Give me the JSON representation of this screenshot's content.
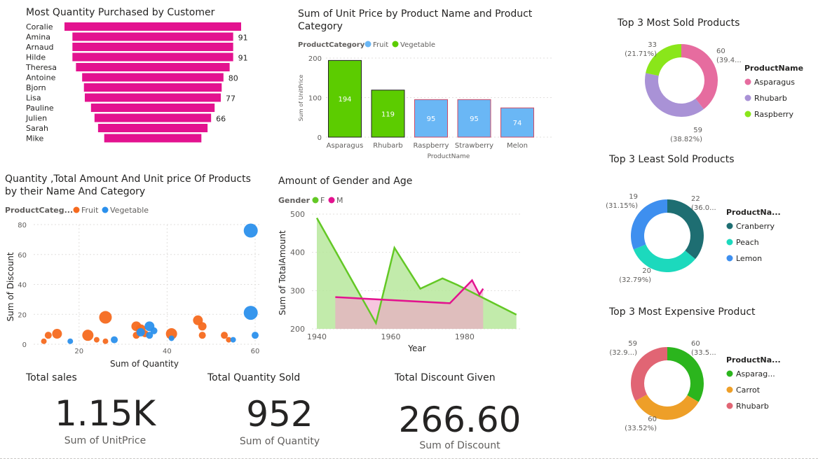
{
  "colors": {
    "pink": "#e3128f",
    "fruit": "#6ab7f5",
    "vegetable": "#5ccc00",
    "scatter_fruit": "#f56a1f",
    "scatter_veg": "#2b90ec",
    "gender_f": "#63c825",
    "gender_m": "#e3128f"
  },
  "charts": {
    "customers": {
      "title": "Most Quantity Purchased by Customer",
      "chart_data": {
        "type": "bar",
        "orientation": "funnel",
        "categories": [
          "Coralie",
          "Amina",
          "Arnaud",
          "Hilde",
          "Theresa",
          "Antoine",
          "Bjorn",
          "Lisa",
          "Pauline",
          "Julien",
          "Sarah",
          "Mike"
        ],
        "values": [
          100,
          91,
          91,
          91,
          87,
          80,
          78,
          77,
          70,
          66,
          62,
          55
        ],
        "labels": [
          "",
          "91",
          "",
          "91",
          "",
          "80",
          "",
          "77",
          "",
          "66",
          "",
          ""
        ]
      }
    },
    "unitprice": {
      "title": "Sum of Unit Price by Product Name and Product Category",
      "legend_title": "ProductCategory",
      "legend": [
        "Fruit",
        "Vegetable"
      ],
      "ylabel": "Sum of UnitPrice",
      "xlabel": "ProductName",
      "chart_data": {
        "type": "bar",
        "categories": [
          "Asparagus",
          "Rhubarb",
          "Raspberry",
          "Strawberry",
          "Melon"
        ],
        "values": [
          194,
          119,
          95,
          95,
          74
        ],
        "labels": [
          "194",
          "119",
          "95",
          "95",
          "74"
        ],
        "category": [
          "Vegetable",
          "Vegetable",
          "Fruit",
          "Fruit",
          "Fruit"
        ],
        "ylim": [
          0,
          200
        ],
        "yticks": [
          0,
          100,
          200
        ],
        "ytick_labels": [
          "0",
          "100",
          "200"
        ]
      }
    },
    "scatter": {
      "title": "Quantity ,Total Amount And Unit price Of Products by their Name And Category",
      "legend_title": "ProductCateg...",
      "legend": [
        "Fruit",
        "Vegetable"
      ],
      "xlabel": "Sum of Quantity",
      "ylabel": "Sum of Discount",
      "chart_data": {
        "type": "scatter",
        "xlim": [
          10,
          60
        ],
        "ylim": [
          0,
          80
        ],
        "xticks": [
          20,
          40,
          60
        ],
        "xtick_labels": [
          "20",
          "40",
          "60"
        ],
        "yticks": [
          0,
          20,
          40,
          60,
          80
        ],
        "ytick_labels": [
          "0",
          "20",
          "40",
          "60",
          "80"
        ],
        "series": [
          {
            "name": "Fruit",
            "x": [
              12,
              13,
              15,
              22,
              24,
              26,
              26,
              33,
              33,
              34,
              35,
              41,
              47,
              48,
              48,
              53,
              54
            ],
            "y": [
              2,
              6,
              7,
              6,
              3,
              18,
              2,
              12,
              6,
              10,
              7,
              7,
              16,
              12,
              6,
              6,
              3
            ],
            "r": [
              4,
              5,
              7,
              8,
              4,
              9,
              4,
              7,
              5,
              7,
              5,
              8,
              7,
              6,
              5,
              5,
              4
            ]
          },
          {
            "name": "Vegetable",
            "x": [
              18,
              28,
              34,
              36,
              36,
              37,
              41,
              55,
              59,
              59,
              60
            ],
            "y": [
              2,
              3,
              8,
              6,
              12,
              9,
              4,
              3,
              76,
              21,
              6
            ],
            "r": [
              4,
              5,
              6,
              5,
              7,
              5,
              4,
              4,
              10,
              10,
              5
            ]
          }
        ]
      }
    },
    "gender": {
      "title": "Amount of Gender and Age",
      "legend_title": "Gender",
      "legend": [
        "F",
        "M"
      ],
      "xlabel": "Year",
      "ylabel": "Sum of TotalAmount",
      "chart_data": {
        "type": "area",
        "xlim": [
          1940,
          1995
        ],
        "ylim": [
          200,
          500
        ],
        "xticks": [
          1940,
          1960,
          1980
        ],
        "xtick_labels": [
          "1940",
          "1960",
          "1980"
        ],
        "yticks": [
          200,
          300,
          400,
          500
        ],
        "ytick_labels": [
          "200",
          "300",
          "400",
          "500"
        ],
        "series": [
          {
            "name": "F",
            "x": [
              1940,
              1956,
              1961,
              1968,
              1974,
              1978,
              1994
            ],
            "y": [
              490,
              215,
              412,
              305,
              332,
              315,
              237
            ]
          },
          {
            "name": "M",
            "x": [
              1945,
              1976,
              1982,
              1984,
              1985
            ],
            "y": [
              283,
              267,
              327,
              290,
              305
            ]
          }
        ]
      }
    },
    "top_sold": {
      "title": "Top 3 Most Sold Products",
      "legend_title": "ProductName",
      "chart_data": {
        "type": "pie",
        "categories": [
          "Asparagus",
          "Rhubarb",
          "Raspberry"
        ],
        "values": [
          60,
          59,
          33
        ],
        "percents": [
          "(39.4...",
          "(38.82%)",
          "(21.71%)"
        ],
        "colors": [
          "#e66c9f",
          "#a992d6",
          "#8ae61a"
        ]
      }
    },
    "least_sold": {
      "title": "Top 3 Least Sold Products",
      "legend_title": "ProductNa...",
      "chart_data": {
        "type": "pie",
        "categories": [
          "Cranberry",
          "Peach",
          "Lemon"
        ],
        "values": [
          22,
          20,
          19
        ],
        "percents": [
          "(36.0...",
          "(32.79%)",
          "(31.15%)"
        ],
        "colors": [
          "#1e6e72",
          "#1cd9bd",
          "#3e8fef"
        ]
      }
    },
    "expensive": {
      "title": "Top 3 Most Expensive Product",
      "legend_title": "ProductNa...",
      "chart_data": {
        "type": "pie",
        "categories": [
          "Asparag...",
          "Carrot",
          "Rhubarb"
        ],
        "values": [
          60,
          60,
          59
        ],
        "percents": [
          "(33.5...",
          "(33.52%)",
          "(32.9...)"
        ],
        "colors": [
          "#2bb51d",
          "#ee9f28",
          "#e16574"
        ]
      }
    }
  },
  "cards": {
    "sales": {
      "title": "Total sales",
      "value": "1.15K",
      "label": "Sum of UnitPrice"
    },
    "quantity": {
      "title": "Total Quantity Sold",
      "value": "952",
      "label": "Sum of Quantity"
    },
    "discount": {
      "title": "Total Discount Given",
      "value": "266.60",
      "label": "Sum of Discount"
    }
  }
}
